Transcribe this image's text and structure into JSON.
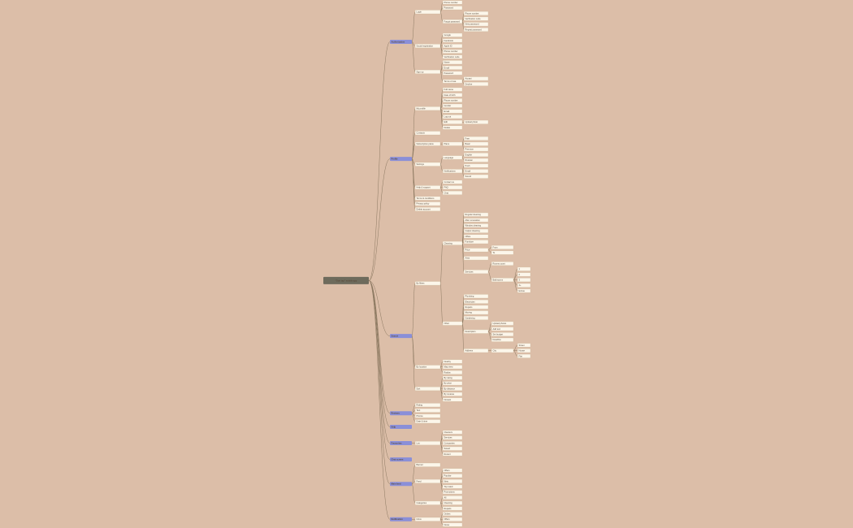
{
  "root": {
    "label": "\"Ouri tap\" mobile app",
    "children": [
      {
        "label": "Authorization",
        "children": [
          {
            "label": "Login",
            "children": [
              {
                "label": "Phone number"
              },
              {
                "label": "Password"
              },
              {
                "label": "Forgot password",
                "children": [
                  {
                    "label": "Phone number"
                  },
                  {
                    "label": "Verification code"
                  },
                  {
                    "label": "New password"
                  },
                  {
                    "label": "Repeat password"
                  }
                ]
              }
            ]
          },
          {
            "label": "Social registration",
            "children": [
              {
                "label": "Google"
              },
              {
                "label": "Facebook"
              },
              {
                "label": "Apple ID"
              },
              {
                "label": "Phone number"
              },
              {
                "label": "Verification code"
              }
            ]
          },
          {
            "label": "Sign up",
            "children": [
              {
                "label": "Name"
              },
              {
                "label": "Email"
              },
              {
                "label": "Password"
              },
              {
                "label": "Terms of use",
                "children": [
                  {
                    "label": "Accept"
                  },
                  {
                    "label": "Decline"
                  }
                ]
              }
            ]
          }
        ]
      },
      {
        "label": "Profile",
        "children": [
          {
            "label": "My profile",
            "children": [
              {
                "label": "Full name"
              },
              {
                "label": "Date of birth"
              },
              {
                "label": "Phone number"
              },
              {
                "label": "Gender"
              },
              {
                "label": "Email"
              },
              {
                "label": "Log out"
              },
              {
                "label": "Edit",
                "children": [
                  {
                    "label": "Upload photo"
                  }
                ]
              },
              {
                "label": "Delete"
              }
            ]
          },
          {
            "label": "Contacts"
          },
          {
            "label": "Subscription plans",
            "children": [
              {
                "label": "Plans",
                "children": [
                  {
                    "label": "Free"
                  },
                  {
                    "label": "Basic"
                  },
                  {
                    "label": "Premium"
                  }
                ]
              }
            ]
          },
          {
            "label": "Settings",
            "children": [
              {
                "label": "Language",
                "children": [
                  {
                    "label": "English"
                  },
                  {
                    "label": "Russian"
                  }
                ]
              },
              {
                "label": "Notifications",
                "children": [
                  {
                    "label": "Push"
                  },
                  {
                    "label": "Email"
                  },
                  {
                    "label": "Sound"
                  }
                ]
              }
            ]
          },
          {
            "label": "Help & support",
            "children": [
              {
                "label": "Contact us"
              },
              {
                "label": "FAQ"
              },
              {
                "label": "Chat"
              }
            ]
          },
          {
            "label": "Terms & conditions"
          },
          {
            "label": "Privacy policy"
          },
          {
            "label": "Delete account"
          }
        ]
      },
      {
        "label": "Search",
        "children": [
          {
            "label": "By filters",
            "children": [
              {
                "label": "Cleaning",
                "children": [
                  {
                    "label": "Regular cleaning"
                  },
                  {
                    "label": "After renovation"
                  },
                  {
                    "label": "Window cleaning"
                  },
                  {
                    "label": "Carpet cleaning"
                  },
                  {
                    "label": "Office"
                  },
                  {
                    "label": "Furniture"
                  },
                  {
                    "label": "Price",
                    "children": [
                      {
                        "label": "From"
                      },
                      {
                        "label": "To"
                      }
                    ]
                  },
                  {
                    "label": "Area"
                  },
                  {
                    "label": "Services",
                    "children": [
                      {
                        "label": "Rooms count"
                      },
                      {
                        "label": "Bathrooms",
                        "children": [
                          {
                            "label": "1"
                          },
                          {
                            "label": "2"
                          },
                          {
                            "label": "3"
                          },
                          {
                            "label": "4+"
                          },
                          {
                            "label": "Extras"
                          }
                        ]
                      }
                    ]
                  }
                ]
              },
              {
                "label": "Other",
                "children": [
                  {
                    "label": "Plumbing"
                  },
                  {
                    "label": "Electrician"
                  },
                  {
                    "label": "Repairs"
                  },
                  {
                    "label": "Moving"
                  },
                  {
                    "label": "Gardening"
                  },
                  {
                    "label": "Description",
                    "children": [
                      {
                        "label": "Upload photos"
                      },
                      {
                        "label": "Add text"
                      },
                      {
                        "label": "Set budget"
                      },
                      {
                        "label": "Deadline"
                      }
                    ]
                  },
                  {
                    "label": "Address",
                    "children": [
                      {
                        "label": "City",
                        "children": [
                          {
                            "label": "Street"
                          },
                          {
                            "label": "House"
                          },
                          {
                            "label": "Flat"
                          }
                        ]
                      }
                    ]
                  }
                ]
              }
            ]
          },
          {
            "label": "By location",
            "children": [
              {
                "label": "Nearby"
              },
              {
                "label": "Map view"
              },
              {
                "label": "Radius"
              }
            ]
          },
          {
            "label": "Sort",
            "children": [
              {
                "label": "By rating"
              },
              {
                "label": "By price"
              },
              {
                "label": "By distance"
              },
              {
                "label": "By reviews"
              },
              {
                "label": "Newest"
              }
            ]
          }
        ]
      },
      {
        "label": "Reviews",
        "children": [
          {
            "label": "Rating"
          },
          {
            "label": "Text"
          },
          {
            "label": "Photos"
          },
          {
            "label": "Date & time"
          }
        ]
      },
      {
        "label": "Help"
      },
      {
        "label": "Favourites",
        "children": [
          {
            "label": "List",
            "children": [
              {
                "label": "Cleaners"
              },
              {
                "label": "Services"
              },
              {
                "label": "Companies"
              },
              {
                "label": "Saved"
              },
              {
                "label": "Recent"
              }
            ]
          }
        ]
      },
      {
        "label": "Chat screen"
      },
      {
        "label": "Main feed",
        "children": [
          {
            "label": "Banner"
          },
          {
            "label": "Feed",
            "children": [
              {
                "label": "Offers"
              },
              {
                "label": "Popular"
              },
              {
                "label": "New"
              },
              {
                "label": "Top rated"
              },
              {
                "label": "Promotions"
              }
            ]
          },
          {
            "label": "Categories",
            "children": [
              {
                "label": "All"
              },
              {
                "label": "Cleaning"
              },
              {
                "label": "Repairs"
              }
            ]
          }
        ]
      },
      {
        "label": "Notification",
        "children": [
          {
            "label": "Inbox",
            "children": [
              {
                "label": "Orders"
              },
              {
                "label": "Offers"
              },
              {
                "label": "News"
              }
            ]
          }
        ]
      }
    ]
  }
}
